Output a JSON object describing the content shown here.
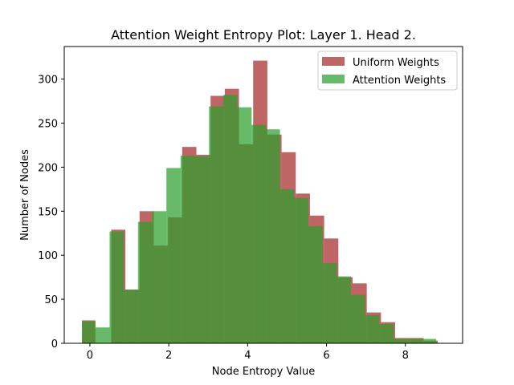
{
  "chart_data": {
    "type": "bar",
    "title": "Attention Weight Entropy Plot: Layer 1. Head 2.",
    "xlabel": "Node Entropy Value",
    "ylabel": "Number of Nodes",
    "xlim": [
      -0.65,
      9.45
    ],
    "ylim": [
      0,
      337
    ],
    "xticks": [
      0,
      2,
      4,
      6,
      8
    ],
    "yticks": [
      0,
      50,
      100,
      150,
      200,
      250,
      300
    ],
    "legend_position": "top-right",
    "grid": false,
    "series": [
      {
        "name": "Uniform Weights",
        "color": "#a83232",
        "alpha": 0.75,
        "bins": [
          {
            "x0": -0.2,
            "x1": 0.14,
            "value": 26
          },
          {
            "x0": 0.54,
            "x1": 0.9,
            "value": 129
          },
          {
            "x0": 0.9,
            "x1": 1.26,
            "value": 61
          },
          {
            "x0": 1.26,
            "x1": 1.62,
            "value": 150
          },
          {
            "x0": 1.62,
            "x1": 1.98,
            "value": 111
          },
          {
            "x0": 1.98,
            "x1": 2.34,
            "value": 143
          },
          {
            "x0": 2.34,
            "x1": 2.7,
            "value": 223
          },
          {
            "x0": 2.7,
            "x1": 3.06,
            "value": 214
          },
          {
            "x0": 3.06,
            "x1": 3.42,
            "value": 281
          },
          {
            "x0": 3.42,
            "x1": 3.78,
            "value": 289
          },
          {
            "x0": 3.78,
            "x1": 4.14,
            "value": 226
          },
          {
            "x0": 4.14,
            "x1": 4.5,
            "value": 321
          },
          {
            "x0": 4.5,
            "x1": 4.86,
            "value": 237
          },
          {
            "x0": 4.86,
            "x1": 5.22,
            "value": 217
          },
          {
            "x0": 5.22,
            "x1": 5.58,
            "value": 170
          },
          {
            "x0": 5.58,
            "x1": 5.94,
            "value": 145
          },
          {
            "x0": 5.94,
            "x1": 6.3,
            "value": 119
          },
          {
            "x0": 6.3,
            "x1": 6.66,
            "value": 75
          },
          {
            "x0": 6.66,
            "x1": 7.02,
            "value": 68
          },
          {
            "x0": 7.02,
            "x1": 7.38,
            "value": 35
          },
          {
            "x0": 7.38,
            "x1": 7.74,
            "value": 24
          },
          {
            "x0": 7.74,
            "x1": 8.1,
            "value": 6
          },
          {
            "x0": 8.1,
            "x1": 8.46,
            "value": 6
          },
          {
            "x0": 8.46,
            "x1": 8.82,
            "value": 3
          }
        ]
      },
      {
        "name": "Attention Weights",
        "color": "#2ca02c",
        "alpha": 0.72,
        "bins": [
          {
            "x0": -0.2,
            "x1": 0.14,
            "value": 25
          },
          {
            "x0": 0.14,
            "x1": 0.5,
            "value": 18
          },
          {
            "x0": 0.5,
            "x1": 0.86,
            "value": 127
          },
          {
            "x0": 0.86,
            "x1": 1.22,
            "value": 61
          },
          {
            "x0": 1.22,
            "x1": 1.58,
            "value": 138
          },
          {
            "x0": 1.58,
            "x1": 1.94,
            "value": 150
          },
          {
            "x0": 1.94,
            "x1": 2.3,
            "value": 199
          },
          {
            "x0": 2.3,
            "x1": 2.66,
            "value": 213
          },
          {
            "x0": 2.66,
            "x1": 3.02,
            "value": 212
          },
          {
            "x0": 3.02,
            "x1": 3.38,
            "value": 269
          },
          {
            "x0": 3.38,
            "x1": 3.74,
            "value": 282
          },
          {
            "x0": 3.74,
            "x1": 4.1,
            "value": 268
          },
          {
            "x0": 4.1,
            "x1": 4.46,
            "value": 248
          },
          {
            "x0": 4.46,
            "x1": 4.82,
            "value": 243
          },
          {
            "x0": 4.82,
            "x1": 5.18,
            "value": 175
          },
          {
            "x0": 5.18,
            "x1": 5.54,
            "value": 165
          },
          {
            "x0": 5.54,
            "x1": 5.9,
            "value": 133
          },
          {
            "x0": 5.9,
            "x1": 6.26,
            "value": 91
          },
          {
            "x0": 6.26,
            "x1": 6.62,
            "value": 76
          },
          {
            "x0": 6.62,
            "x1": 6.98,
            "value": 55
          },
          {
            "x0": 6.98,
            "x1": 7.34,
            "value": 32
          },
          {
            "x0": 7.34,
            "x1": 7.7,
            "value": 22
          },
          {
            "x0": 7.7,
            "x1": 8.06,
            "value": 5
          },
          {
            "x0": 8.06,
            "x1": 8.42,
            "value": 5
          },
          {
            "x0": 8.42,
            "x1": 8.78,
            "value": 5
          }
        ]
      }
    ]
  }
}
